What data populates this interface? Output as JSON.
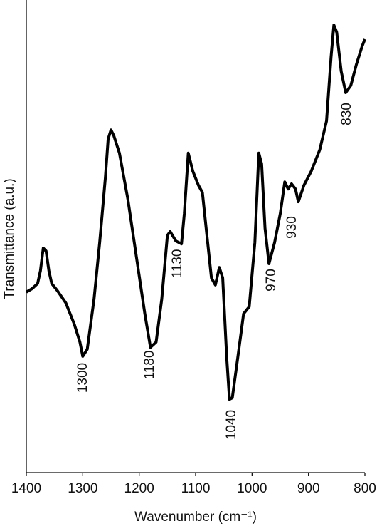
{
  "chart_data": {
    "type": "line",
    "x_label": "Wavenumber (cm⁻¹)",
    "y_label": "Transmittance (a.u.)",
    "xlim": [
      1400,
      800
    ],
    "xticks": [
      1400,
      1300,
      1200,
      1100,
      1000,
      900,
      800
    ],
    "ylim": [
      0,
      100
    ],
    "series": [
      {
        "color": "#000000",
        "x": [
          1400,
          1390,
          1380,
          1375,
          1370,
          1365,
          1360,
          1355,
          1345,
          1330,
          1315,
          1305,
          1300,
          1292,
          1280,
          1270,
          1260,
          1255,
          1250,
          1245,
          1235,
          1220,
          1205,
          1190,
          1180,
          1170,
          1160,
          1150,
          1145,
          1135,
          1125,
          1120,
          1113,
          1105,
          1095,
          1088,
          1080,
          1072,
          1065,
          1058,
          1052,
          1045,
          1040,
          1035,
          1025,
          1015,
          1005,
          995,
          988,
          983,
          977,
          970,
          960,
          950,
          942,
          936,
          930,
          923,
          918,
          908,
          895,
          880,
          868,
          860,
          855,
          850,
          842,
          834,
          825,
          815,
          805,
          800
        ],
        "values": [
          38.2,
          38.9,
          40.0,
          42.7,
          47.5,
          46.9,
          42.7,
          40.0,
          38.5,
          35.9,
          31.4,
          27.6,
          24.6,
          26.1,
          36.7,
          48.7,
          62.3,
          70.6,
          72.5,
          71.3,
          67.6,
          57.8,
          45.7,
          33.6,
          26.5,
          27.6,
          36.7,
          50.2,
          51.0,
          49.0,
          48.4,
          54.8,
          67.6,
          63.8,
          60.8,
          59.3,
          50.2,
          41.2,
          39.7,
          43.4,
          41.2,
          24.6,
          15.5,
          15.8,
          24.6,
          33.6,
          35.1,
          48.7,
          67.6,
          65.3,
          51.7,
          44.2,
          48.7,
          54.8,
          61.5,
          60.0,
          61.1,
          60.0,
          57.3,
          60.8,
          63.8,
          68.3,
          74.4,
          87.9,
          94.7,
          93.2,
          84.9,
          80.4,
          81.9,
          86.4,
          90.2,
          91.7
        ]
      }
    ],
    "annotations": [
      "1300",
      "1180",
      "1130",
      "1040",
      "970",
      "930",
      "830"
    ]
  }
}
